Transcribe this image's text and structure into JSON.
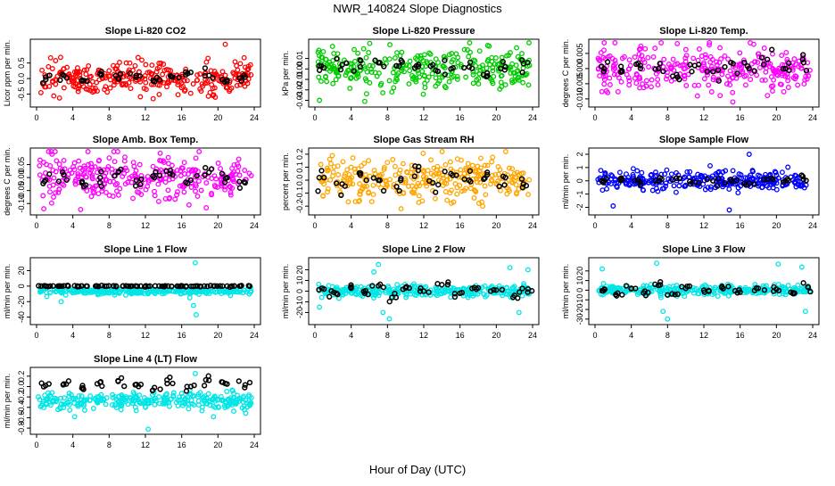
{
  "figure": {
    "title": "NWR_140824  Slope Diagnostics",
    "xlabel": "Hour of Day (UTC)"
  },
  "chart_data": [
    {
      "type": "scatter",
      "title": "Slope Li-820 CO2",
      "ylabel": "Licor ppm per min.",
      "xlim": [
        0,
        24
      ],
      "ylim": [
        -0.8,
        1.15
      ],
      "yticks": [
        -0.5,
        0.0,
        0.5
      ],
      "ytick_labels": [
        "-0.5",
        "0.0",
        "0.5"
      ],
      "xticks": [
        0,
        4,
        8,
        12,
        16,
        20,
        24
      ],
      "color": "#ff0000",
      "spread": 0.25,
      "summary_spread": 0.1,
      "outliers": [
        {
          "x": 20.8,
          "y": 1.1
        },
        {
          "x": 19.7,
          "y": -0.6
        }
      ],
      "summary_points": [
        {
          "x": 1.0,
          "y": 0.05
        },
        {
          "x": 3.0,
          "y": 0.1
        },
        {
          "x": 5.0,
          "y": -0.05
        },
        {
          "x": 7.0,
          "y": 0.15
        },
        {
          "x": 9.0,
          "y": 0.0
        },
        {
          "x": 11.0,
          "y": 0.1
        },
        {
          "x": 13.0,
          "y": -0.1
        },
        {
          "x": 15.0,
          "y": 0.05
        },
        {
          "x": 17.0,
          "y": 0.2
        },
        {
          "x": 19.0,
          "y": 0.1
        },
        {
          "x": 21.0,
          "y": -0.05
        },
        {
          "x": 23.0,
          "y": 0.05
        }
      ]
    },
    {
      "type": "scatter",
      "title": "Slope Li-820 Pressure",
      "ylabel": "kPa per min.",
      "xlim": [
        0,
        24
      ],
      "ylim": [
        -0.033,
        0.025
      ],
      "yticks": [
        -0.03,
        -0.02,
        -0.01,
        0.0,
        0.01
      ],
      "ytick_labels": [
        "-0.03",
        "-0.02",
        "-0.01",
        "0.00",
        "0.01"
      ],
      "xticks": [
        0,
        4,
        8,
        12,
        16,
        20,
        24
      ],
      "color": "#00cc00",
      "spread": 0.009,
      "summary_spread": 0.004,
      "outliers": [
        {
          "x": 0.5,
          "y": -0.03
        },
        {
          "x": 5.5,
          "y": -0.031
        }
      ],
      "summary_points": [
        {
          "x": 1.0,
          "y": 0.001
        },
        {
          "x": 3.0,
          "y": 0.004
        },
        {
          "x": 5.0,
          "y": 0.002
        },
        {
          "x": 7.0,
          "y": 0.006
        },
        {
          "x": 9.0,
          "y": 0.003
        },
        {
          "x": 11.0,
          "y": 0.001
        },
        {
          "x": 13.0,
          "y": 0.004
        },
        {
          "x": 15.0,
          "y": 0.0
        },
        {
          "x": 17.0,
          "y": 0.002
        },
        {
          "x": 19.0,
          "y": -0.004
        },
        {
          "x": 21.0,
          "y": 0.002
        },
        {
          "x": 23.0,
          "y": 0.005
        }
      ]
    },
    {
      "type": "scatter",
      "title": "Slope Li-820 Temp.",
      "ylabel": "degrees C per min.",
      "xlim": [
        0,
        24
      ],
      "ylim": [
        -0.0115,
        0.0085
      ],
      "yticks": [
        -0.01,
        -0.005,
        0.0,
        0.005
      ],
      "ytick_labels": [
        "-0.010",
        "-0.005",
        "0.000",
        "0.005"
      ],
      "xticks": [
        0,
        4,
        8,
        12,
        16,
        20,
        24
      ],
      "color": "#ff00ff",
      "spread": 0.0035,
      "summary_spread": 0.0015,
      "outliers": [
        {
          "x": 15.2,
          "y": -0.011
        },
        {
          "x": 17.5,
          "y": 0.008
        }
      ],
      "summary_points": [
        {
          "x": 1.0,
          "y": 0.0
        },
        {
          "x": 3.0,
          "y": -0.001
        },
        {
          "x": 5.0,
          "y": 0.001
        },
        {
          "x": 7.0,
          "y": 0.0
        },
        {
          "x": 9.0,
          "y": -0.002
        },
        {
          "x": 11.0,
          "y": 0.001
        },
        {
          "x": 13.0,
          "y": -0.001
        },
        {
          "x": 15.0,
          "y": 0.002
        },
        {
          "x": 17.0,
          "y": 0.0
        },
        {
          "x": 19.0,
          "y": 0.003
        },
        {
          "x": 21.0,
          "y": 0.0
        },
        {
          "x": 23.0,
          "y": 0.002
        }
      ]
    },
    {
      "type": "scatter",
      "title": "Slope Amb. Box Temp.",
      "ylabel": "degrees C per min.",
      "xlim": [
        0,
        24
      ],
      "ylim": [
        -0.13,
        0.1
      ],
      "yticks": [
        -0.1,
        -0.05,
        0.0,
        0.05
      ],
      "ytick_labels": [
        "-0.10",
        "-0.05",
        "0.00",
        "0.05"
      ],
      "xticks": [
        0,
        4,
        8,
        12,
        16,
        20,
        24
      ],
      "color": "#ff00ff",
      "spread": 0.045,
      "summary_spread": 0.02,
      "outliers": [
        {
          "x": 0.8,
          "y": -0.12
        },
        {
          "x": 1.7,
          "y": 0.09
        }
      ],
      "summary_points": [
        {
          "x": 1.0,
          "y": -0.01
        },
        {
          "x": 3.0,
          "y": 0.01
        },
        {
          "x": 5.0,
          "y": -0.02
        },
        {
          "x": 7.0,
          "y": 0.0
        },
        {
          "x": 9.0,
          "y": 0.02
        },
        {
          "x": 11.0,
          "y": -0.01
        },
        {
          "x": 13.0,
          "y": 0.0
        },
        {
          "x": 15.0,
          "y": 0.01
        },
        {
          "x": 17.0,
          "y": -0.01
        },
        {
          "x": 19.0,
          "y": 0.02
        },
        {
          "x": 21.0,
          "y": 0.0
        },
        {
          "x": 23.0,
          "y": -0.02
        }
      ]
    },
    {
      "type": "scatter",
      "title": "Slope Gas Stream RH",
      "ylabel": "percent per min.",
      "xlim": [
        0,
        24
      ],
      "ylim": [
        -0.24,
        0.22
      ],
      "yticks": [
        -0.2,
        -0.1,
        0.0,
        0.1,
        0.2
      ],
      "ytick_labels": [
        "-0.2",
        "-0.1",
        "0.0",
        "0.1",
        "0.2"
      ],
      "xticks": [
        0,
        4,
        8,
        12,
        16,
        20,
        24
      ],
      "color": "#ffa500",
      "spread": 0.075,
      "summary_spread": 0.04,
      "outliers": [
        {
          "x": 9.5,
          "y": -0.22
        },
        {
          "x": 18.5,
          "y": -0.2
        }
      ],
      "summary_points": [
        {
          "x": 1.0,
          "y": 0.02
        },
        {
          "x": 3.0,
          "y": -0.03
        },
        {
          "x": 5.0,
          "y": 0.04
        },
        {
          "x": 7.0,
          "y": 0.0
        },
        {
          "x": 9.0,
          "y": -0.05
        },
        {
          "x": 11.0,
          "y": 0.03
        },
        {
          "x": 13.0,
          "y": -0.02
        },
        {
          "x": 15.0,
          "y": 0.05
        },
        {
          "x": 17.0,
          "y": 0.0
        },
        {
          "x": 19.0,
          "y": 0.06
        },
        {
          "x": 21.0,
          "y": 0.02
        },
        {
          "x": 23.0,
          "y": -0.03
        }
      ]
    },
    {
      "type": "scatter",
      "title": "Slope Sample Flow",
      "ylabel": "ml/min per min.",
      "xlim": [
        0,
        24
      ],
      "ylim": [
        -2.3,
        2.2
      ],
      "yticks": [
        -2,
        -1,
        0,
        1,
        2
      ],
      "ytick_labels": [
        "-2",
        "-1",
        "0",
        "1",
        "2"
      ],
      "xticks": [
        0,
        4,
        8,
        12,
        16,
        20,
        24
      ],
      "color": "#0000ff",
      "spread": 0.35,
      "summary_spread": 0.15,
      "outliers": [
        {
          "x": 2.0,
          "y": -1.9
        },
        {
          "x": 14.8,
          "y": -2.2
        },
        {
          "x": 17.0,
          "y": 2.0
        }
      ],
      "summary_points": [
        {
          "x": 1.0,
          "y": 0.0
        },
        {
          "x": 3.0,
          "y": 0.1
        },
        {
          "x": 5.0,
          "y": -0.1
        },
        {
          "x": 7.0,
          "y": 0.0
        },
        {
          "x": 9.0,
          "y": 0.2
        },
        {
          "x": 11.0,
          "y": -0.1
        },
        {
          "x": 13.0,
          "y": 0.0
        },
        {
          "x": 15.0,
          "y": 0.1
        },
        {
          "x": 17.0,
          "y": -0.2
        },
        {
          "x": 19.0,
          "y": 0.1
        },
        {
          "x": 21.0,
          "y": 0.0
        },
        {
          "x": 23.0,
          "y": 0.1
        }
      ]
    },
    {
      "type": "scatter",
      "title": "Slope Line 1 Flow",
      "ylabel": "ml/min per min.",
      "xlim": [
        0,
        24
      ],
      "ylim": [
        -45,
        32
      ],
      "yticks": [
        -40,
        -20,
        0,
        20
      ],
      "ytick_labels": [
        "-40",
        "-20",
        "0",
        "20"
      ],
      "xticks": [
        0,
        4,
        8,
        12,
        16,
        20,
        24
      ],
      "color": "#00e5e5",
      "spread": 2.0,
      "summary_spread": 0.5,
      "outliers": [
        {
          "x": 2.7,
          "y": -20
        },
        {
          "x": 17.5,
          "y": 30
        },
        {
          "x": 17.3,
          "y": -25
        },
        {
          "x": 17.6,
          "y": -37
        },
        {
          "x": 16.9,
          "y": -15
        }
      ],
      "summary_points": [
        {
          "x": 0.5,
          "y": 0.0
        },
        {
          "x": 1.5,
          "y": 0.0
        },
        {
          "x": 2.5,
          "y": 0.0
        },
        {
          "x": 3.5,
          "y": 0.0
        },
        {
          "x": 4.5,
          "y": 0.0
        },
        {
          "x": 5.5,
          "y": 0.0
        },
        {
          "x": 6.5,
          "y": 0.0
        },
        {
          "x": 7.5,
          "y": 0.0
        },
        {
          "x": 8.5,
          "y": 0.0
        },
        {
          "x": 9.5,
          "y": 0.0
        },
        {
          "x": 10.5,
          "y": 0.0
        },
        {
          "x": 11.5,
          "y": 0.0
        },
        {
          "x": 12.5,
          "y": 0.0
        },
        {
          "x": 13.5,
          "y": 0.0
        },
        {
          "x": 14.5,
          "y": 0.0
        },
        {
          "x": 15.5,
          "y": 0.0
        },
        {
          "x": 16.5,
          "y": 0.0
        },
        {
          "x": 17.5,
          "y": 0.0
        },
        {
          "x": 18.5,
          "y": 0.0
        },
        {
          "x": 19.5,
          "y": 0.0
        },
        {
          "x": 20.5,
          "y": 0.0
        },
        {
          "x": 21.5,
          "y": 0.0
        },
        {
          "x": 22.5,
          "y": 0.0
        },
        {
          "x": 23.5,
          "y": 0.0
        }
      ]
    },
    {
      "type": "scatter",
      "title": "Slope Line 2 Flow",
      "ylabel": "ml/min per min.",
      "xlim": [
        0,
        24
      ],
      "ylim": [
        -28,
        28
      ],
      "yticks": [
        -20,
        -10,
        0,
        10,
        20
      ],
      "ytick_labels": [
        "-20",
        "-10",
        "0",
        "10",
        "20"
      ],
      "xticks": [
        0,
        4,
        8,
        12,
        16,
        20,
        24
      ],
      "color": "#00e5e5",
      "spread": 2.5,
      "summary_spread": 2.0,
      "outliers": [
        {
          "x": 0.5,
          "y": -15
        },
        {
          "x": 6.5,
          "y": 18
        },
        {
          "x": 7.0,
          "y": 25
        },
        {
          "x": 7.5,
          "y": -20
        },
        {
          "x": 8.2,
          "y": -26
        },
        {
          "x": 21.5,
          "y": 22
        },
        {
          "x": 22.5,
          "y": -20
        },
        {
          "x": 23.5,
          "y": 20
        }
      ],
      "summary_points": [
        {
          "x": 1.0,
          "y": 2
        },
        {
          "x": 2.5,
          "y": -3
        },
        {
          "x": 4.0,
          "y": 4
        },
        {
          "x": 5.5,
          "y": -2
        },
        {
          "x": 7.0,
          "y": 5
        },
        {
          "x": 8.5,
          "y": -6
        },
        {
          "x": 10.0,
          "y": 3
        },
        {
          "x": 12.0,
          "y": 0
        },
        {
          "x": 14.0,
          "y": 6
        },
        {
          "x": 16.0,
          "y": -2
        },
        {
          "x": 18.0,
          "y": 3
        },
        {
          "x": 20.0,
          "y": 1
        },
        {
          "x": 22.0,
          "y": -4
        },
        {
          "x": 23.5,
          "y": 2
        }
      ]
    },
    {
      "type": "scatter",
      "title": "Slope Line 3 Flow",
      "ylabel": "ml/min per min.",
      "xlim": [
        0,
        24
      ],
      "ylim": [
        -32,
        30
      ],
      "yticks": [
        -30,
        -20,
        -10,
        0,
        10,
        20
      ],
      "ytick_labels": [
        "-30",
        "-20",
        "-10",
        "0",
        "10",
        "20"
      ],
      "xticks": [
        0,
        4,
        8,
        12,
        16,
        20,
        24
      ],
      "color": "#00e5e5",
      "spread": 2.5,
      "summary_spread": 2.0,
      "outliers": [
        {
          "x": 0.8,
          "y": 22
        },
        {
          "x": 6.8,
          "y": 28
        },
        {
          "x": 8.0,
          "y": -30
        },
        {
          "x": 7.5,
          "y": -22
        },
        {
          "x": 20.2,
          "y": 27
        },
        {
          "x": 22.8,
          "y": 24
        },
        {
          "x": 23.2,
          "y": -22
        }
      ],
      "summary_points": [
        {
          "x": 1.0,
          "y": 1
        },
        {
          "x": 2.5,
          "y": -3
        },
        {
          "x": 4.0,
          "y": 2
        },
        {
          "x": 5.5,
          "y": -1
        },
        {
          "x": 7.0,
          "y": 5
        },
        {
          "x": 8.5,
          "y": -4
        },
        {
          "x": 10.0,
          "y": 2
        },
        {
          "x": 12.0,
          "y": 0
        },
        {
          "x": 14.0,
          "y": 4
        },
        {
          "x": 16.0,
          "y": -2
        },
        {
          "x": 18.0,
          "y": 2
        },
        {
          "x": 20.0,
          "y": 1
        },
        {
          "x": 22.0,
          "y": -3
        },
        {
          "x": 23.5,
          "y": 3
        }
      ]
    },
    {
      "type": "scatter",
      "title": "Slope Line 4 (LT) Flow",
      "ylabel": "ml/min per min.",
      "xlim": [
        0,
        24
      ],
      "ylim": [
        -0.85,
        0.3
      ],
      "yticks": [
        -0.8,
        -0.6,
        -0.4,
        -0.2,
        0.0,
        0.2
      ],
      "ytick_labels": [
        "-0.8",
        "-0.6",
        "-0.4",
        "-0.2",
        "0.0",
        "0.2"
      ],
      "xticks": [
        0,
        4,
        8,
        12,
        16,
        20,
        24
      ],
      "color": "#00e5e5",
      "spread": 0.08,
      "summary_spread": 0.05,
      "outliers": [
        {
          "x": 4.2,
          "y": -0.58
        },
        {
          "x": 12.3,
          "y": -0.82
        },
        {
          "x": 19.5,
          "y": -0.58
        },
        {
          "x": 0.2,
          "y": -0.2
        },
        {
          "x": 17.5,
          "y": 0.25
        }
      ],
      "summary_points": [
        {
          "x": 1.0,
          "y": 0.02
        },
        {
          "x": 3.0,
          "y": 0.05
        },
        {
          "x": 5.0,
          "y": -0.03
        },
        {
          "x": 7.0,
          "y": 0.08
        },
        {
          "x": 9.0,
          "y": 0.1
        },
        {
          "x": 11.0,
          "y": 0.04
        },
        {
          "x": 13.0,
          "y": -0.02
        },
        {
          "x": 15.0,
          "y": 0.06
        },
        {
          "x": 17.0,
          "y": 0.0
        },
        {
          "x": 19.0,
          "y": 0.12
        },
        {
          "x": 21.0,
          "y": 0.05
        },
        {
          "x": 23.0,
          "y": 0.03
        }
      ]
    }
  ]
}
